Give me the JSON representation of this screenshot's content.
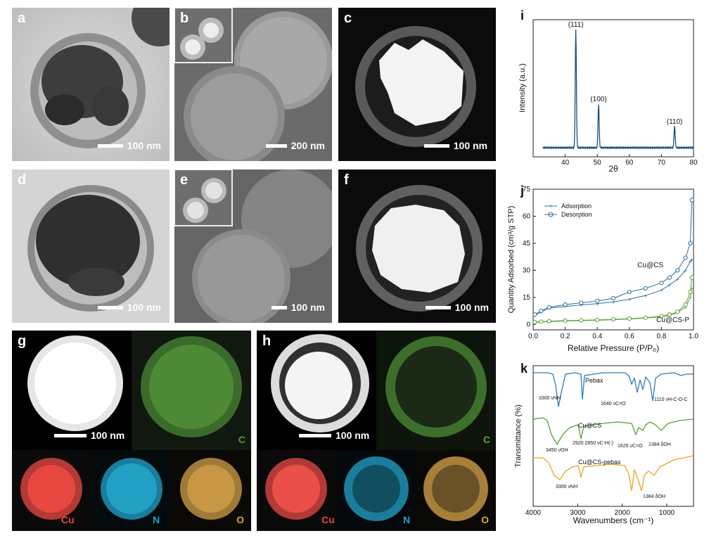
{
  "panels": {
    "a": {
      "label": "a",
      "scale": "100 nm"
    },
    "b": {
      "label": "b",
      "scale": "200 nm"
    },
    "c": {
      "label": "c",
      "scale": "100 nm"
    },
    "d": {
      "label": "d",
      "scale": "100 nm"
    },
    "e": {
      "label": "e",
      "scale": "100 nm"
    },
    "f": {
      "label": "f",
      "scale": "100 nm"
    },
    "g": {
      "label": "g",
      "scale": "100 nm",
      "elements": [
        "C",
        "Cu",
        "N",
        "O"
      ]
    },
    "h": {
      "label": "h",
      "scale": "100 nm",
      "elements": [
        "C",
        "Cu",
        "N",
        "O"
      ]
    },
    "i": {
      "label": "i"
    },
    "j": {
      "label": "j"
    },
    "k": {
      "label": "k"
    }
  },
  "colors": {
    "C": "#5a9e3a",
    "Cu": "#e8473f",
    "N": "#1aa3c8",
    "O": "#d9a648",
    "blue": "#2e6f9e",
    "xrd": "#1f4e79"
  },
  "chart_data": [
    {
      "id": "i",
      "type": "line",
      "xlabel": "2θ",
      "ylabel": "Intensity (a.u.)",
      "xlim": [
        30,
        80
      ],
      "xticks": [
        40,
        50,
        60,
        70,
        80
      ],
      "peaks": [
        {
          "x": 43.3,
          "height": 1.0,
          "label": "(111)"
        },
        {
          "x": 50.4,
          "height": 0.37,
          "label": "(100)"
        },
        {
          "x": 74.1,
          "height": 0.18,
          "label": "(110)"
        }
      ]
    },
    {
      "id": "j",
      "type": "line",
      "xlabel": "Relative Pressure (P/P₀)",
      "ylabel": "Quantity Adsorbed (cm³/g STP)",
      "xlim": [
        0.0,
        1.0
      ],
      "ylim": [
        -3,
        75
      ],
      "xticks": [
        0.0,
        0.2,
        0.4,
        0.6,
        0.8,
        1.0
      ],
      "yticks": [
        0,
        15,
        30,
        45,
        60,
        75
      ],
      "legend": [
        "Adsorption",
        "Desorption"
      ],
      "annotations": [
        "Cu@CS",
        "Cu@CS-P"
      ],
      "series": [
        {
          "name": "Cu@CS",
          "x": [
            0.01,
            0.05,
            0.1,
            0.2,
            0.3,
            0.4,
            0.5,
            0.6,
            0.7,
            0.8,
            0.85,
            0.9,
            0.95,
            0.98,
            0.99
          ],
          "adsorption": [
            5,
            7,
            9,
            10,
            10.8,
            11.5,
            12.5,
            14,
            16,
            19,
            22,
            25,
            30,
            35,
            36
          ],
          "desorption": [
            5.5,
            7.5,
            9.5,
            11,
            12,
            13,
            14.5,
            18,
            20,
            23,
            26,
            30,
            37,
            45,
            69
          ]
        },
        {
          "name": "Cu@CS-P",
          "x": [
            0.01,
            0.05,
            0.1,
            0.2,
            0.3,
            0.4,
            0.5,
            0.6,
            0.7,
            0.8,
            0.85,
            0.9,
            0.95,
            0.98,
            0.99
          ],
          "adsorption": [
            1,
            1.3,
            1.6,
            1.9,
            2.1,
            2.3,
            2.6,
            3,
            3.5,
            4.3,
            5,
            6.5,
            9.5,
            15,
            20
          ],
          "desorption": [
            1.2,
            1.5,
            1.8,
            2.1,
            2.3,
            2.5,
            2.8,
            3.2,
            3.7,
            4.6,
            5.5,
            7,
            11,
            18,
            26
          ]
        }
      ]
    },
    {
      "id": "k",
      "type": "line",
      "xlabel": "Wavenumbers (cm⁻¹)",
      "ylabel": "Transmittance (%)",
      "xlim": [
        4000,
        400
      ],
      "xticks": [
        4000,
        3000,
        2000,
        1000
      ],
      "series": [
        {
          "name": "Pebax"
        },
        {
          "name": "Cu@CS"
        },
        {
          "name": "Cu@CS-pebax"
        }
      ],
      "annotations": [
        "3300 νNH",
        "1640 νC=O",
        "1110 νH-C-O-C",
        "3450 νOH",
        "2920 2850 νC-H(-)",
        "1625 νC=O",
        "1384 δOH",
        "3300 νNH",
        "1384 δOH"
      ]
    }
  ]
}
